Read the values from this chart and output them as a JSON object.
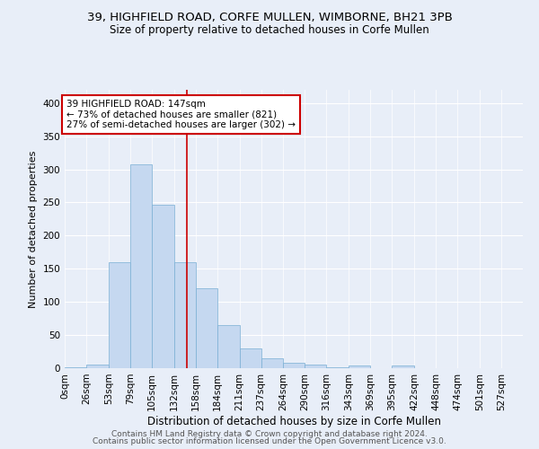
{
  "title_line1": "39, HIGHFIELD ROAD, CORFE MULLEN, WIMBORNE, BH21 3PB",
  "title_line2": "Size of property relative to detached houses in Corfe Mullen",
  "xlabel": "Distribution of detached houses by size in Corfe Mullen",
  "ylabel": "Number of detached properties",
  "footer_line1": "Contains HM Land Registry data © Crown copyright and database right 2024.",
  "footer_line2": "Contains public sector information licensed under the Open Government Licence v3.0.",
  "bin_labels": [
    "0sqm",
    "26sqm",
    "53sqm",
    "79sqm",
    "105sqm",
    "132sqm",
    "158sqm",
    "184sqm",
    "211sqm",
    "237sqm",
    "264sqm",
    "290sqm",
    "316sqm",
    "343sqm",
    "369sqm",
    "395sqm",
    "422sqm",
    "448sqm",
    "474sqm",
    "501sqm",
    "527sqm"
  ],
  "bin_edges": [
    0,
    26,
    53,
    79,
    105,
    132,
    158,
    184,
    211,
    237,
    264,
    290,
    316,
    343,
    369,
    395,
    422,
    448,
    474,
    501,
    527,
    553
  ],
  "bar_values": [
    2,
    5,
    160,
    307,
    247,
    160,
    120,
    65,
    30,
    15,
    8,
    5,
    1,
    4,
    0,
    4,
    0,
    0,
    0,
    0,
    0
  ],
  "bar_color": "#c5d8f0",
  "bar_edge_color": "#7aafd4",
  "vline_x": 147,
  "vline_color": "#cc0000",
  "annotation_line1": "39 HIGHFIELD ROAD: 147sqm",
  "annotation_line2": "← 73% of detached houses are smaller (821)",
  "annotation_line3": "27% of semi-detached houses are larger (302) →",
  "annotation_box_color": "#cc0000",
  "ylim": [
    0,
    420
  ],
  "yticks": [
    0,
    50,
    100,
    150,
    200,
    250,
    300,
    350,
    400
  ],
  "background_color": "#e8eef8",
  "plot_bg_color": "#e8eef8",
  "grid_color": "#ffffff",
  "title_fontsize": 9.5,
  "subtitle_fontsize": 8.5,
  "xlabel_fontsize": 8.5,
  "ylabel_fontsize": 8,
  "tick_fontsize": 7.5,
  "annotation_fontsize": 7.5,
  "footer_fontsize": 6.5,
  "footer_color": "#555555"
}
